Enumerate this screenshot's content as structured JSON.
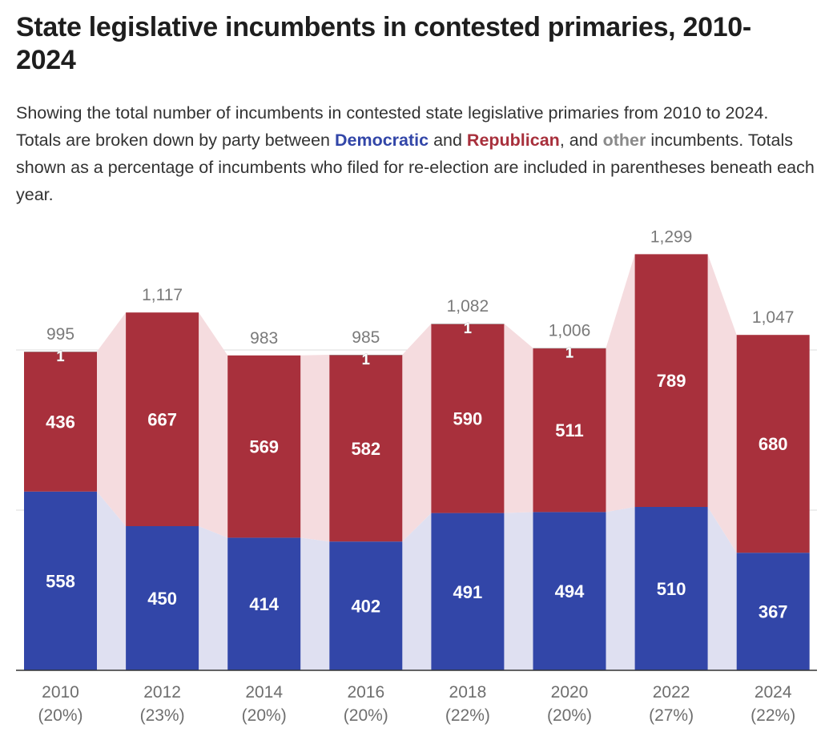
{
  "title": "State legislative incumbents in contested primaries, 2010-2024",
  "subtitle": {
    "part1": "Showing the total number of incumbents in contested state legislative primaries from 2010 to 2024. Totals are broken down by party between ",
    "dem": "Democratic",
    "part2": " and ",
    "rep": "Republican",
    "part3": ", and ",
    "other": "other",
    "part4": " incumbents. Totals shown as a percentage of incumbents who filed for re-election are included in parentheses beneath each year."
  },
  "colors": {
    "democratic": "#3246a8",
    "republican": "#a8303c",
    "other": "#9a9a9a",
    "dem_band": "#dfe0f1",
    "rep_band": "#f5dcdf",
    "gridline": "#dddddd",
    "baseline": "#333333"
  },
  "chart_data": {
    "type": "bar",
    "stacked": true,
    "categories": [
      "2010",
      "2012",
      "2014",
      "2016",
      "2018",
      "2020",
      "2022",
      "2024"
    ],
    "category_notes": [
      "(20%)",
      "(23%)",
      "(20%)",
      "(20%)",
      "(22%)",
      "(20%)",
      "(27%)",
      "(22%)"
    ],
    "series": [
      {
        "name": "Democratic",
        "values": [
          558,
          450,
          414,
          402,
          491,
          494,
          510,
          367
        ]
      },
      {
        "name": "Republican",
        "values": [
          436,
          667,
          569,
          582,
          590,
          511,
          789,
          680
        ]
      },
      {
        "name": "other",
        "values": [
          1,
          0,
          0,
          1,
          1,
          1,
          0,
          0
        ]
      }
    ],
    "totals": [
      995,
      1117,
      983,
      985,
      1082,
      1006,
      1299,
      1047
    ],
    "total_labels": [
      "995",
      "1,117",
      "983",
      "985",
      "1,082",
      "1,006",
      "1,299",
      "1,047"
    ],
    "ylim": [
      0,
      2000
    ],
    "grid": true,
    "legend": "inline in subtitle"
  }
}
